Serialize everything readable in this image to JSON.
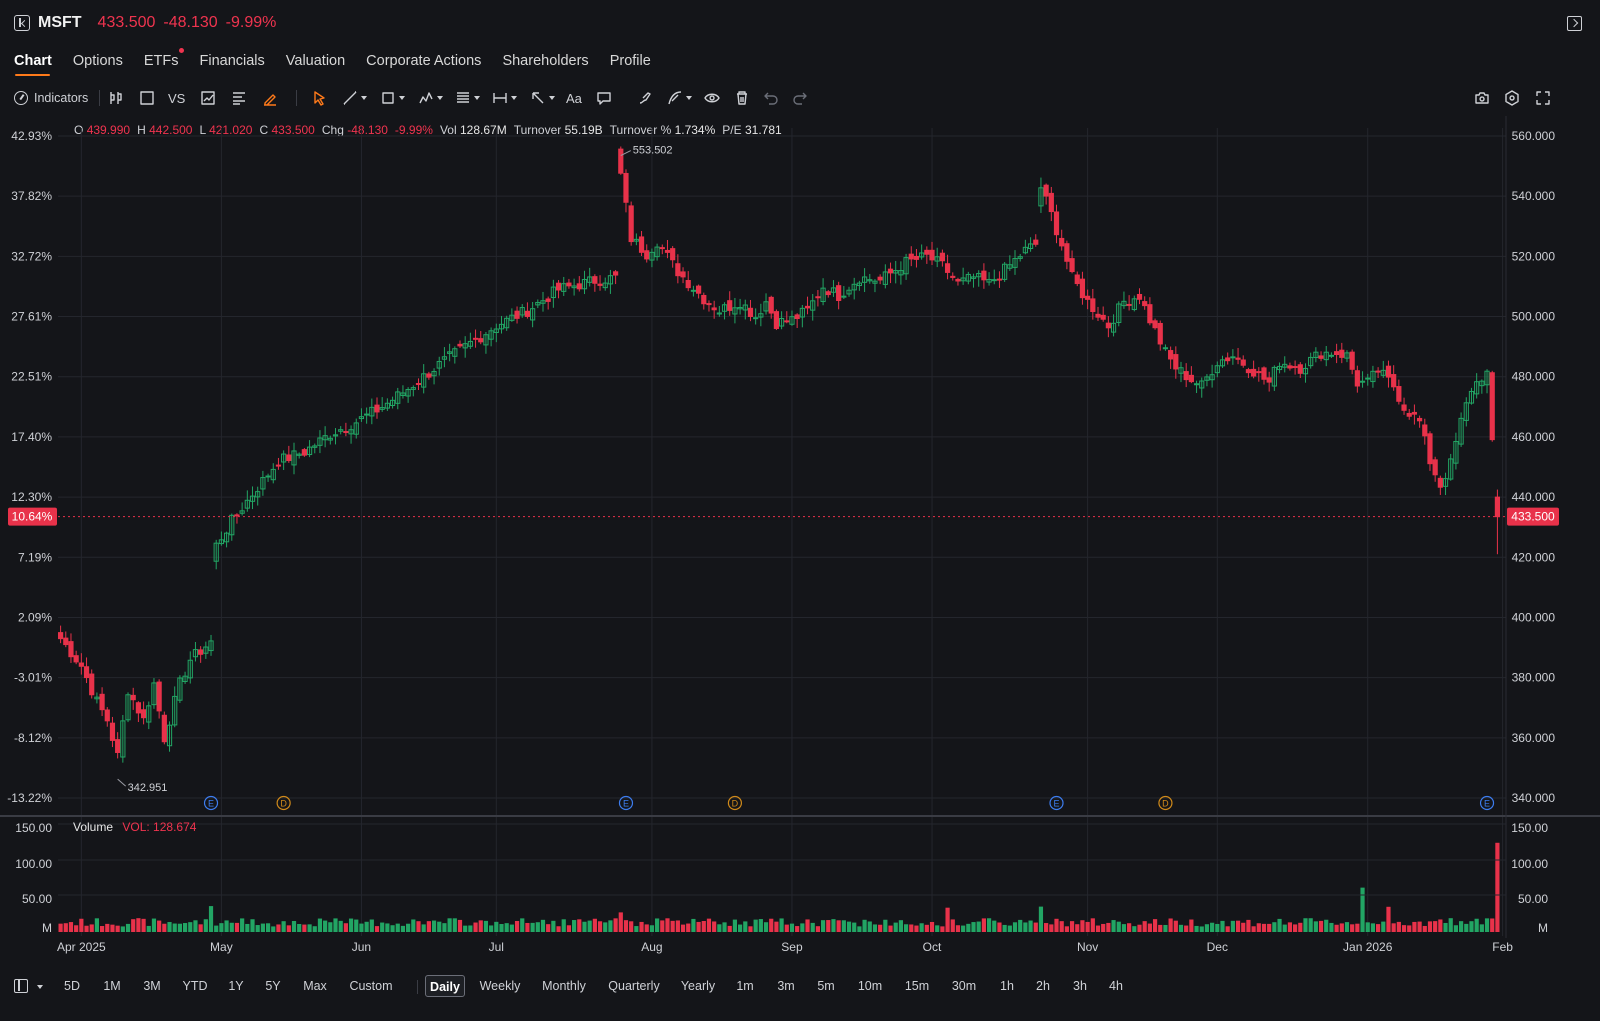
{
  "header": {
    "symbol": "MSFT",
    "price": "433.500",
    "change": "-48.130",
    "change_pct": "-9.99%"
  },
  "tabs": [
    {
      "label": "Chart",
      "active": true
    },
    {
      "label": "Options"
    },
    {
      "label": "ETFs",
      "dot": true
    },
    {
      "label": "Financials"
    },
    {
      "label": "Valuation"
    },
    {
      "label": "Corporate Actions"
    },
    {
      "label": "Shareholders"
    },
    {
      "label": "Profile"
    }
  ],
  "toolbar": {
    "indicators_label": "Indicators",
    "vs_label": "VS",
    "text_label": "Aa",
    "icons": [
      "candles-icon",
      "rect-icon",
      "compare-icon",
      "multi-chart-icon",
      "align-icon",
      "highlighter-icon",
      "cursor-icon",
      "trendline-icon",
      "shape-icon",
      "pattern-icon",
      "fib-icon",
      "measure-icon",
      "arrow-icon",
      "text-icon",
      "callout-icon",
      "brush-icon",
      "draw-icon",
      "eye-icon",
      "trash-icon",
      "undo-icon",
      "redo-icon",
      "camera-icon",
      "settings-icon",
      "fullscreen-icon"
    ]
  },
  "ohlc": [
    {
      "k": "O",
      "v": "439.990",
      "c": "red"
    },
    {
      "k": "H",
      "v": "442.500",
      "c": "red"
    },
    {
      "k": "L",
      "v": "421.020",
      "c": "red"
    },
    {
      "k": "C",
      "v": "433.500",
      "c": "red"
    },
    {
      "k": "Chg",
      "v": "-48.130",
      "c": "red"
    },
    {
      "k": "",
      "v": "-9.99%",
      "c": "red"
    },
    {
      "k": "Vol",
      "v": "128.67M",
      "c": "wh"
    },
    {
      "k": "Turnover",
      "v": "55.19B",
      "c": "wh"
    },
    {
      "k": "Turnover %",
      "v": "1.734%",
      "c": "wh"
    },
    {
      "k": "P/E",
      "v": "31.781",
      "c": "wh"
    }
  ],
  "volume_legend": {
    "label": "Volume",
    "value": "VOL: 128.674"
  },
  "colors": {
    "up": "#22a564",
    "down": "#e8324a",
    "bg": "#141519",
    "grid": "#24262d",
    "accent": "#ff7a1a"
  },
  "chart_data": {
    "type": "candlestick",
    "y_price_ticks": [
      "560.000",
      "540.000",
      "520.000",
      "500.000",
      "480.000",
      "460.000",
      "440.000",
      "420.000",
      "400.000",
      "380.000",
      "360.000",
      "340.000"
    ],
    "y_pct_ticks": [
      "42.93%",
      "37.82%",
      "32.72%",
      "27.61%",
      "22.51%",
      "17.40%",
      "12.30%",
      "7.19%",
      "2.09%",
      "-3.01%",
      "-8.12%",
      "-13.22%"
    ],
    "ylim": [
      336,
      562
    ],
    "current_price_label": "433.500",
    "current_pct_label": "10.64%",
    "current_price": 433.5,
    "max_label": "553.502",
    "min_label": "342.951",
    "x_labels": [
      "Apr 2025",
      "May",
      "Jun",
      "Jul",
      "Aug",
      "Sep",
      "Oct",
      "Nov",
      "Dec",
      "Jan 2026",
      "Feb"
    ],
    "x_label_days": [
      4,
      31,
      58,
      84,
      114,
      141,
      168,
      198,
      223,
      252,
      278
    ],
    "events": [
      {
        "type": "E",
        "day": 29
      },
      {
        "type": "D",
        "day": 43
      },
      {
        "type": "E",
        "day": 109
      },
      {
        "type": "D",
        "day": 130
      },
      {
        "type": "E",
        "day": 192
      },
      {
        "type": "D",
        "day": 213
      },
      {
        "type": "E",
        "day": 275
      }
    ],
    "volume_ticks": [
      "150.00",
      "100.00",
      "50.00",
      "M"
    ],
    "volume_ylim": [
      0,
      150
    ],
    "anchors": [
      [
        0,
        393
      ],
      [
        4,
        384
      ],
      [
        7,
        372
      ],
      [
        9,
        366
      ],
      [
        11,
        354
      ],
      [
        13,
        376
      ],
      [
        16,
        366
      ],
      [
        18,
        378
      ],
      [
        20,
        360
      ],
      [
        23,
        378
      ],
      [
        25,
        386
      ],
      [
        29,
        392
      ],
      [
        30,
        424
      ],
      [
        33,
        432
      ],
      [
        37,
        441
      ],
      [
        42,
        452
      ],
      [
        47,
        455
      ],
      [
        52,
        461
      ],
      [
        57,
        465
      ],
      [
        62,
        470
      ],
      [
        67,
        476
      ],
      [
        73,
        484
      ],
      [
        78,
        490
      ],
      [
        84,
        497
      ],
      [
        90,
        502
      ],
      [
        96,
        509
      ],
      [
        103,
        512
      ],
      [
        107,
        513
      ],
      [
        108,
        547
      ],
      [
        110,
        526
      ],
      [
        113,
        521
      ],
      [
        115,
        525
      ],
      [
        119,
        515
      ],
      [
        124,
        506
      ],
      [
        127,
        502
      ],
      [
        131,
        505
      ],
      [
        134,
        500
      ],
      [
        136,
        505
      ],
      [
        138,
        498
      ],
      [
        141,
        499
      ],
      [
        144,
        502
      ],
      [
        147,
        510
      ],
      [
        150,
        507
      ],
      [
        154,
        513
      ],
      [
        158,
        512
      ],
      [
        163,
        518
      ],
      [
        167,
        520
      ],
      [
        170,
        517
      ],
      [
        173,
        511
      ],
      [
        176,
        513
      ],
      [
        179,
        511
      ],
      [
        183,
        517
      ],
      [
        186,
        522
      ],
      [
        188,
        524
      ],
      [
        189,
        543
      ],
      [
        191,
        534
      ],
      [
        193,
        524
      ],
      [
        195,
        513
      ],
      [
        198,
        505
      ],
      [
        202,
        497
      ],
      [
        205,
        505
      ],
      [
        208,
        507
      ],
      [
        210,
        499
      ],
      [
        213,
        488
      ],
      [
        215,
        483
      ],
      [
        218,
        479
      ],
      [
        220,
        477
      ],
      [
        223,
        485
      ],
      [
        226,
        487
      ],
      [
        230,
        482
      ],
      [
        233,
        478
      ],
      [
        235,
        485
      ],
      [
        239,
        483
      ],
      [
        243,
        488
      ],
      [
        246,
        488
      ],
      [
        248,
        487
      ],
      [
        250,
        478
      ],
      [
        252,
        478
      ],
      [
        254,
        482
      ],
      [
        257,
        477
      ],
      [
        259,
        470
      ],
      [
        262,
        465
      ],
      [
        264,
        452
      ],
      [
        266,
        444
      ],
      [
        268,
        451
      ],
      [
        270,
        465
      ],
      [
        272,
        476
      ],
      [
        274,
        480
      ],
      [
        275,
        481
      ],
      [
        277,
        433.5
      ]
    ],
    "last_candle": {
      "o": 439.99,
      "h": 442.5,
      "l": 421.02,
      "c": 433.5,
      "v": 128.674
    }
  }
}
